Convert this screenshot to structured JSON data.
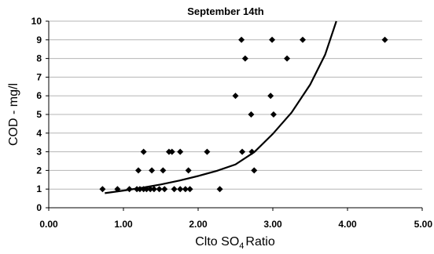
{
  "chart_data": {
    "type": "scatter",
    "title": "September 14th",
    "xlabel": "Clto SO4 Ratio",
    "xlabel_parts": {
      "main": "Clto SO",
      "sub": "4",
      "rest": "Ratio"
    },
    "ylabel": "COD - mg/l",
    "xlim": [
      0,
      5
    ],
    "ylim": [
      0,
      10
    ],
    "x_ticks": [
      "0.00",
      "1.00",
      "2.00",
      "3.00",
      "4.00",
      "5.00"
    ],
    "y_ticks": [
      "0",
      "1",
      "2",
      "3",
      "4",
      "5",
      "6",
      "7",
      "8",
      "9",
      "10"
    ],
    "x_tick_values": [
      0,
      1,
      2,
      3,
      4,
      5
    ],
    "y_tick_values": [
      0,
      1,
      2,
      3,
      4,
      5,
      6,
      7,
      8,
      9,
      10
    ],
    "grid": "horizontal",
    "marker": "diamond",
    "points": [
      {
        "x": 0.72,
        "y": 1
      },
      {
        "x": 0.92,
        "y": 1
      },
      {
        "x": 1.08,
        "y": 1
      },
      {
        "x": 1.18,
        "y": 1
      },
      {
        "x": 1.22,
        "y": 1
      },
      {
        "x": 1.27,
        "y": 1
      },
      {
        "x": 1.31,
        "y": 1
      },
      {
        "x": 1.36,
        "y": 1
      },
      {
        "x": 1.41,
        "y": 1
      },
      {
        "x": 1.48,
        "y": 1
      },
      {
        "x": 1.55,
        "y": 1
      },
      {
        "x": 1.68,
        "y": 1
      },
      {
        "x": 1.76,
        "y": 1
      },
      {
        "x": 1.83,
        "y": 1
      },
      {
        "x": 1.89,
        "y": 1
      },
      {
        "x": 2.29,
        "y": 1
      },
      {
        "x": 1.2,
        "y": 2
      },
      {
        "x": 1.38,
        "y": 2
      },
      {
        "x": 1.53,
        "y": 2
      },
      {
        "x": 1.87,
        "y": 2
      },
      {
        "x": 2.75,
        "y": 2
      },
      {
        "x": 1.27,
        "y": 3
      },
      {
        "x": 1.61,
        "y": 3
      },
      {
        "x": 1.65,
        "y": 3
      },
      {
        "x": 1.76,
        "y": 3
      },
      {
        "x": 2.12,
        "y": 3
      },
      {
        "x": 2.59,
        "y": 3
      },
      {
        "x": 2.72,
        "y": 3
      },
      {
        "x": 2.71,
        "y": 5
      },
      {
        "x": 3.01,
        "y": 5
      },
      {
        "x": 2.5,
        "y": 6
      },
      {
        "x": 2.97,
        "y": 6
      },
      {
        "x": 2.63,
        "y": 8
      },
      {
        "x": 3.19,
        "y": 8
      },
      {
        "x": 2.58,
        "y": 9
      },
      {
        "x": 2.99,
        "y": 9
      },
      {
        "x": 3.4,
        "y": 9
      },
      {
        "x": 4.5,
        "y": 9
      }
    ],
    "trendline": {
      "type": "exponential",
      "x": [
        0.75,
        1.0,
        1.25,
        1.5,
        1.75,
        2.0,
        2.25,
        2.5,
        2.75,
        3.0,
        3.25,
        3.5,
        3.7,
        3.85
      ],
      "y": [
        0.78,
        0.92,
        1.07,
        1.25,
        1.46,
        1.7,
        1.98,
        2.32,
        2.98,
        3.96,
        5.1,
        6.6,
        8.2,
        10.0
      ]
    }
  }
}
